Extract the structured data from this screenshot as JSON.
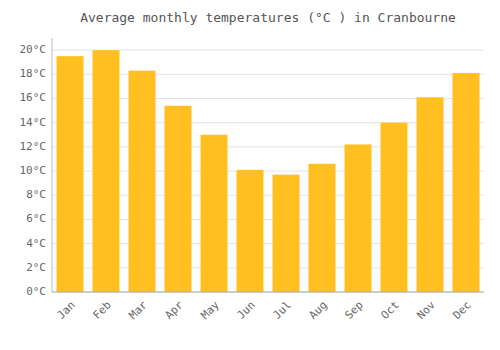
{
  "chart_data": {
    "type": "bar",
    "title": "Average monthly temperatures (°C ) in Cranbourne",
    "categories": [
      "Jan",
      "Feb",
      "Mar",
      "Apr",
      "May",
      "Jun",
      "Jul",
      "Aug",
      "Sep",
      "Oct",
      "Nov",
      "Dec"
    ],
    "values": [
      19.5,
      20.0,
      18.3,
      15.4,
      13.0,
      10.1,
      9.7,
      10.6,
      12.2,
      14.0,
      16.1,
      18.1
    ],
    "color": "#FFC020",
    "ylim": [
      0,
      21
    ],
    "yticks": [
      {
        "value": 0,
        "label": "0°C"
      },
      {
        "value": 2,
        "label": "2°C"
      },
      {
        "value": 4,
        "label": "4°C"
      },
      {
        "value": 6,
        "label": "6°C"
      },
      {
        "value": 8,
        "label": "8°C"
      },
      {
        "value": 10,
        "label": "10°C"
      },
      {
        "value": 12,
        "label": "12°C"
      },
      {
        "value": 14,
        "label": "14°C"
      },
      {
        "value": 16,
        "label": "16°C"
      },
      {
        "value": 18,
        "label": "18°C"
      },
      {
        "value": 20,
        "label": "20°C"
      }
    ],
    "grid": true
  }
}
